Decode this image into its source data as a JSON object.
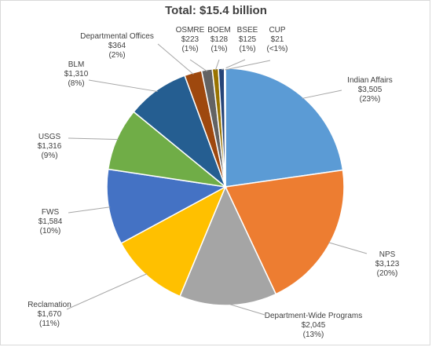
{
  "chart_data": {
    "type": "pie",
    "title": "Total: $15.4 billion",
    "slices": [
      {
        "name": "Indian Affairs",
        "value": 3505,
        "value_label": "$3,505",
        "pct_label": "(23%)",
        "color": "#5b9bd5"
      },
      {
        "name": "NPS",
        "value": 3123,
        "value_label": "$3,123",
        "pct_label": "(20%)",
        "color": "#ed7d31"
      },
      {
        "name": "Department-Wide Programs",
        "value": 2045,
        "value_label": "$2,045",
        "pct_label": "(13%)",
        "color": "#a5a5a5"
      },
      {
        "name": "Reclamation",
        "value": 1670,
        "value_label": "$1,670",
        "pct_label": "(11%)",
        "color": "#ffc000"
      },
      {
        "name": "FWS",
        "value": 1584,
        "value_label": "$1,584",
        "pct_label": "(10%)",
        "color": "#4472c4"
      },
      {
        "name": "USGS",
        "value": 1316,
        "value_label": "$1,316",
        "pct_label": "(9%)",
        "color": "#70ad47"
      },
      {
        "name": "BLM",
        "value": 1310,
        "value_label": "$1,310",
        "pct_label": "(8%)",
        "color": "#255e91"
      },
      {
        "name": "Departmental Offices",
        "value": 364,
        "value_label": "$364",
        "pct_label": "(2%)",
        "color": "#9e480e"
      },
      {
        "name": "OSMRE",
        "value": 223,
        "value_label": "$223",
        "pct_label": "(1%)",
        "color": "#636363"
      },
      {
        "name": "BOEM",
        "value": 128,
        "value_label": "$128",
        "pct_label": "(1%)",
        "color": "#997300"
      },
      {
        "name": "BSEE",
        "value": 125,
        "value_label": "$125",
        "pct_label": "(1%)",
        "color": "#264478"
      },
      {
        "name": "CUP",
        "value": 21,
        "value_label": "$21",
        "pct_label": "(<1%)",
        "color": "#43682b"
      }
    ]
  }
}
